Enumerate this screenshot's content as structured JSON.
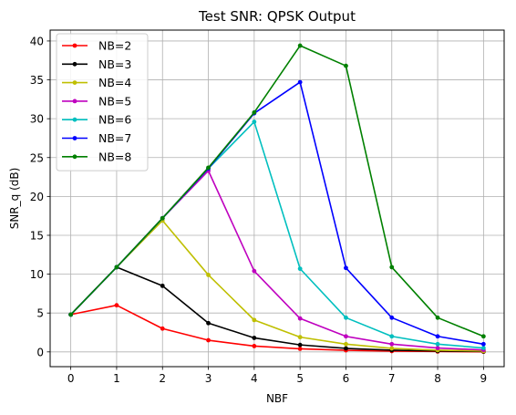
{
  "chart_data": {
    "type": "line",
    "title": "Test SNR: QPSK Output",
    "xlabel": "NBF",
    "ylabel": "SNR_q (dB)",
    "x": [
      0,
      1,
      2,
      3,
      4,
      5,
      6,
      7,
      8,
      9
    ],
    "xlim": [
      -0.45,
      9.45
    ],
    "ylim": [
      -1.9,
      41.4
    ],
    "xticks": [
      0,
      1,
      2,
      3,
      4,
      5,
      6,
      7,
      8,
      9
    ],
    "yticks": [
      0,
      5,
      10,
      15,
      20,
      25,
      30,
      35,
      40
    ],
    "grid": true,
    "legend_position": "top-left",
    "series": [
      {
        "name": "NB=2",
        "color": "#ff0000",
        "values": [
          4.8,
          6.0,
          3.0,
          1.5,
          0.75,
          0.4,
          0.2,
          0.1,
          0.05,
          0.02
        ]
      },
      {
        "name": "NB=3",
        "color": "#000000",
        "values": [
          4.8,
          10.9,
          8.5,
          3.7,
          1.8,
          0.9,
          0.45,
          0.22,
          0.11,
          0.05
        ]
      },
      {
        "name": "NB=4",
        "color": "#bfbf00",
        "values": [
          4.8,
          10.9,
          16.9,
          9.9,
          4.1,
          1.9,
          1.0,
          0.45,
          0.22,
          0.11
        ]
      },
      {
        "name": "NB=5",
        "color": "#bf00bf",
        "values": [
          4.8,
          10.9,
          17.2,
          23.3,
          10.4,
          4.3,
          2.0,
          1.0,
          0.5,
          0.25
        ]
      },
      {
        "name": "NB=6",
        "color": "#00bfbf",
        "values": [
          4.8,
          10.9,
          17.2,
          23.6,
          29.6,
          10.7,
          4.4,
          2.0,
          1.0,
          0.5
        ]
      },
      {
        "name": "NB=7",
        "color": "#0000ff",
        "values": [
          4.8,
          10.9,
          17.2,
          23.6,
          30.7,
          34.7,
          10.8,
          4.4,
          2.0,
          1.0
        ]
      },
      {
        "name": "NB=8",
        "color": "#008000",
        "values": [
          4.8,
          10.9,
          17.2,
          23.7,
          30.8,
          39.4,
          36.8,
          10.9,
          4.4,
          2.0
        ]
      }
    ]
  }
}
